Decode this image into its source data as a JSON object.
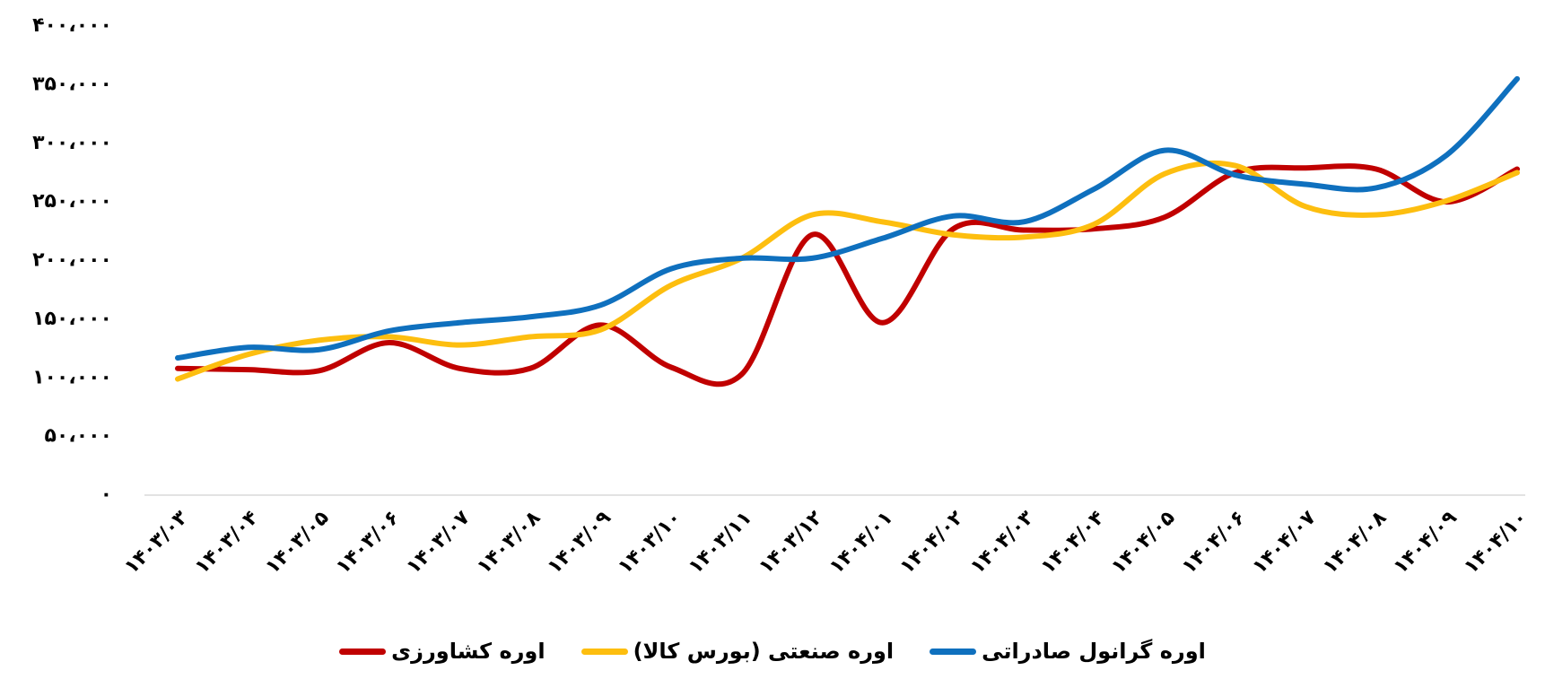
{
  "chart_data": {
    "type": "line",
    "categories": [
      "۱۴۰۳/۰۳",
      "۱۴۰۳/۰۴",
      "۱۴۰۳/۰۵",
      "۱۴۰۳/۰۶",
      "۱۴۰۳/۰۷",
      "۱۴۰۳/۰۸",
      "۱۴۰۳/۰۹",
      "۱۴۰۳/۱۰",
      "۱۴۰۳/۱۱",
      "۱۴۰۳/۱۲",
      "۱۴۰۴/۰۱",
      "۱۴۰۴/۰۲",
      "۱۴۰۴/۰۳",
      "۱۴۰۴/۰۴",
      "۱۴۰۴/۰۵",
      "۱۴۰۴/۰۶",
      "۱۴۰۴/۰۷",
      "۱۴۰۴/۰۸",
      "۱۴۰۴/۰۹",
      "۱۴۰۴/۱۰"
    ],
    "series": [
      {
        "name": "اوره گرانول صادراتی",
        "color": "#0f70be",
        "values": [
          117000,
          126000,
          124000,
          140000,
          147000,
          152000,
          162000,
          193000,
          202000,
          202000,
          219000,
          238000,
          233000,
          261000,
          294000,
          273000,
          265000,
          262000,
          290000,
          355000
        ]
      },
      {
        "name": "اوره صنعتی (بورس کالا)",
        "color": "#fdbe0f",
        "values": [
          99000,
          120000,
          132000,
          135000,
          128000,
          135000,
          141000,
          179000,
          202000,
          239000,
          233000,
          222000,
          220000,
          231000,
          274000,
          281000,
          246000,
          239000,
          251000,
          275000
        ]
      },
      {
        "name": "اوره کشاورزی",
        "color": "#c00000",
        "values": [
          108000,
          107000,
          106000,
          130000,
          108000,
          108000,
          145000,
          109000,
          103000,
          222000,
          147000,
          227000,
          226000,
          227000,
          237000,
          275000,
          279000,
          278000,
          250000,
          278000
        ]
      }
    ],
    "ylim": [
      0,
      400000
    ],
    "yticks": [
      {
        "value": 0,
        "label": "۰"
      },
      {
        "value": 50000,
        "label": "۵۰،۰۰۰"
      },
      {
        "value": 100000,
        "label": "۱۰۰،۰۰۰"
      },
      {
        "value": 150000,
        "label": "۱۵۰،۰۰۰"
      },
      {
        "value": 200000,
        "label": "۲۰۰،۰۰۰"
      },
      {
        "value": 250000,
        "label": "۲۵۰،۰۰۰"
      },
      {
        "value": 300000,
        "label": "۳۰۰،۰۰۰"
      },
      {
        "value": 350000,
        "label": "۳۵۰،۰۰۰"
      },
      {
        "value": 400000,
        "label": "۴۰۰،۰۰۰"
      }
    ],
    "grid": false
  }
}
